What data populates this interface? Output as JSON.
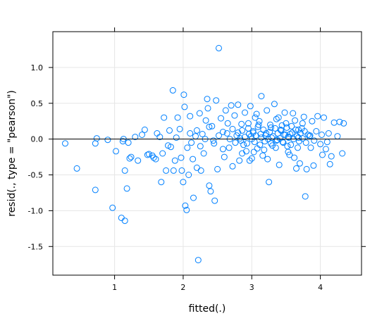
{
  "chart_data": {
    "type": "scatter",
    "title": "",
    "xlabel": "fitted(.)",
    "ylabel": "resid(., type = \"pearson\")",
    "xlim": [
      0.1,
      4.6
    ],
    "ylim": [
      -1.9,
      1.5
    ],
    "x_ticks": [
      1,
      2,
      3,
      4
    ],
    "y_ticks": [
      -1.5,
      -1.0,
      -0.5,
      0.0,
      0.5,
      1.0
    ],
    "x_tick_labels": [
      "1",
      "2",
      "3",
      "4"
    ],
    "y_tick_labels": [
      "-1.5",
      "-1.0",
      "-0.5",
      "0.0",
      "0.5",
      "1.0"
    ],
    "reference_line_y": 0,
    "grid": true,
    "marker": "open-circle",
    "color": "#0080ff",
    "series": [
      {
        "points": [
          [
            0.28,
            -0.06
          ],
          [
            0.45,
            -0.41
          ],
          [
            0.72,
            -0.06
          ],
          [
            0.74,
            0.01
          ],
          [
            0.72,
            -0.71
          ],
          [
            0.9,
            -0.01
          ],
          [
            0.97,
            -0.96
          ],
          [
            1.02,
            -0.17
          ],
          [
            1.1,
            -1.1
          ],
          [
            1.12,
            -0.03
          ],
          [
            1.13,
            0.0
          ],
          [
            1.15,
            -1.14
          ],
          [
            1.15,
            -0.44
          ],
          [
            1.18,
            -0.69
          ],
          [
            1.2,
            -0.05
          ],
          [
            1.22,
            -0.27
          ],
          [
            1.24,
            -0.25
          ],
          [
            1.3,
            0.03
          ],
          [
            1.34,
            -0.3
          ],
          [
            1.4,
            0.06
          ],
          [
            1.44,
            0.13
          ],
          [
            1.48,
            -0.22
          ],
          [
            1.5,
            -0.21
          ],
          [
            1.55,
            -0.23
          ],
          [
            1.57,
            -0.26
          ],
          [
            1.6,
            -0.28
          ],
          [
            1.62,
            0.08
          ],
          [
            1.66,
            0.03
          ],
          [
            1.68,
            -0.6
          ],
          [
            1.7,
            -0.2
          ],
          [
            1.72,
            0.3
          ],
          [
            1.75,
            -0.44
          ],
          [
            1.78,
            -0.09
          ],
          [
            1.8,
            0.12
          ],
          [
            1.82,
            -0.11
          ],
          [
            1.85,
            0.68
          ],
          [
            1.86,
            -0.44
          ],
          [
            1.88,
            -0.3
          ],
          [
            1.9,
            0.02
          ],
          [
            1.92,
            0.3
          ],
          [
            1.95,
            0.14
          ],
          [
            1.97,
            -0.26
          ],
          [
            1.98,
            -0.44
          ],
          [
            2.0,
            -0.6
          ],
          [
            2.01,
            0.62
          ],
          [
            2.02,
            0.45
          ],
          [
            2.03,
            -0.93
          ],
          [
            2.05,
            -0.99
          ],
          [
            2.06,
            -0.12
          ],
          [
            2.08,
            -0.5
          ],
          [
            2.1,
            0.32
          ],
          [
            2.12,
            -0.05
          ],
          [
            2.14,
            -0.28
          ],
          [
            2.15,
            -0.82
          ],
          [
            2.18,
            0.04
          ],
          [
            2.2,
            -0.4
          ],
          [
            2.22,
            -1.69
          ],
          [
            2.24,
            0.36
          ],
          [
            2.26,
            -0.44
          ],
          [
            2.28,
            0.07
          ],
          [
            2.3,
            -0.2
          ],
          [
            2.33,
            0.26
          ],
          [
            2.35,
            0.56
          ],
          [
            2.36,
            0.43
          ],
          [
            2.38,
            -0.65
          ],
          [
            2.4,
            -0.73
          ],
          [
            2.42,
            0.18
          ],
          [
            2.44,
            -0.02
          ],
          [
            2.46,
            -0.86
          ],
          [
            2.48,
            0.54
          ],
          [
            2.5,
            -0.42
          ],
          [
            2.52,
            1.27
          ],
          [
            2.55,
            0.29
          ],
          [
            2.58,
            0.1
          ],
          [
            2.6,
            -0.25
          ],
          [
            2.62,
            0.4
          ],
          [
            2.65,
            0.22
          ],
          [
            2.67,
            -0.12
          ],
          [
            2.7,
            0.47
          ],
          [
            2.72,
            -0.38
          ],
          [
            2.75,
            0.33
          ],
          [
            2.78,
            0.05
          ],
          [
            2.8,
            0.48
          ],
          [
            2.82,
            -0.3
          ],
          [
            2.85,
            0.21
          ],
          [
            2.88,
            -0.08
          ],
          [
            2.9,
            0.37
          ],
          [
            2.92,
            -0.17
          ],
          [
            2.95,
            0.15
          ],
          [
            2.98,
            0.46
          ],
          [
            3.0,
            -0.27
          ],
          [
            3.02,
            0.09
          ],
          [
            3.05,
            0.3
          ],
          [
            3.08,
            -0.13
          ],
          [
            3.1,
            0.2
          ],
          [
            3.14,
            0.6
          ],
          [
            3.16,
            -0.23
          ],
          [
            3.2,
            0.05
          ],
          [
            3.22,
            0.4
          ],
          [
            3.25,
            -0.6
          ],
          [
            3.28,
            0.16
          ],
          [
            3.3,
            -0.09
          ],
          [
            3.33,
            0.49
          ],
          [
            3.36,
            0.28
          ],
          [
            3.4,
            -0.36
          ],
          [
            3.42,
            0.13
          ],
          [
            3.45,
            -0.04
          ],
          [
            3.48,
            0.37
          ],
          [
            3.5,
            0.22
          ],
          [
            3.53,
            -0.18
          ],
          [
            3.56,
            0.07
          ],
          [
            3.6,
            0.36
          ],
          [
            3.62,
            -0.26
          ],
          [
            3.65,
            -0.41
          ],
          [
            3.68,
            0.13
          ],
          [
            3.7,
            -0.34
          ],
          [
            3.74,
            0.22
          ],
          [
            3.76,
            0.31
          ],
          [
            3.78,
            -0.8
          ],
          [
            3.8,
            -0.42
          ],
          [
            3.84,
            0.04
          ],
          [
            3.86,
            -0.12
          ],
          [
            3.88,
            0.25
          ],
          [
            3.9,
            -0.37
          ],
          [
            3.94,
            0.11
          ],
          [
            3.96,
            0.32
          ],
          [
            4.0,
            -0.07
          ],
          [
            4.03,
            -0.22
          ],
          [
            4.05,
            0.3
          ],
          [
            4.08,
            -0.14
          ],
          [
            4.12,
            0.08
          ],
          [
            4.14,
            -0.35
          ],
          [
            4.16,
            -0.24
          ],
          [
            4.2,
            0.23
          ],
          [
            4.25,
            0.04
          ],
          [
            4.28,
            0.24
          ],
          [
            4.32,
            -0.2
          ],
          [
            4.34,
            0.22
          ],
          [
            2.1,
            0.08
          ],
          [
            2.2,
            0.12
          ],
          [
            2.25,
            -0.1
          ],
          [
            2.32,
            0.0
          ],
          [
            2.38,
            0.17
          ],
          [
            2.45,
            -0.06
          ],
          [
            2.52,
            0.05
          ],
          [
            2.58,
            -0.14
          ],
          [
            2.64,
            0.08
          ],
          [
            2.68,
            0.0
          ],
          [
            2.72,
            0.14
          ],
          [
            2.76,
            -0.05
          ],
          [
            2.8,
            0.09
          ],
          [
            2.84,
            -0.02
          ],
          [
            2.86,
            0.12
          ],
          [
            2.9,
            0.03
          ],
          [
            2.93,
            -0.06
          ],
          [
            2.96,
            0.07
          ],
          [
            3.0,
            0.0
          ],
          [
            3.02,
            0.11
          ],
          [
            3.04,
            -0.04
          ],
          [
            3.06,
            0.05
          ],
          [
            3.09,
            0.17
          ],
          [
            3.12,
            -0.08
          ],
          [
            3.14,
            0.02
          ],
          [
            3.17,
            0.13
          ],
          [
            3.19,
            -0.03
          ],
          [
            3.21,
            0.08
          ],
          [
            3.24,
            0.0
          ],
          [
            3.26,
            0.1
          ],
          [
            3.28,
            -0.06
          ],
          [
            3.31,
            0.04
          ],
          [
            3.34,
            0.15
          ],
          [
            3.36,
            -0.02
          ],
          [
            3.38,
            0.08
          ],
          [
            3.41,
            0.01
          ],
          [
            3.43,
            0.12
          ],
          [
            3.46,
            -0.05
          ],
          [
            3.49,
            0.06
          ],
          [
            3.51,
            0.16
          ],
          [
            3.54,
            0.02
          ],
          [
            3.57,
            -0.08
          ],
          [
            3.59,
            0.09
          ],
          [
            3.61,
            0.0
          ],
          [
            3.64,
            0.13
          ],
          [
            3.66,
            0.04
          ],
          [
            3.69,
            -0.03
          ],
          [
            3.71,
            0.08
          ],
          [
            3.74,
            0.01
          ],
          [
            3.77,
            0.11
          ],
          [
            3.79,
            -0.05
          ],
          [
            3.82,
            0.06
          ],
          [
            2.86,
            -0.2
          ],
          [
            2.95,
            0.22
          ],
          [
            3.03,
            -0.18
          ],
          [
            3.11,
            0.25
          ],
          [
            3.18,
            -0.15
          ],
          [
            3.27,
            0.2
          ],
          [
            3.35,
            -0.12
          ],
          [
            3.44,
            0.19
          ],
          [
            3.52,
            -0.1
          ],
          [
            3.58,
            0.18
          ],
          [
            3.67,
            -0.12
          ],
          [
            3.73,
            0.15
          ],
          [
            2.97,
            -0.3
          ],
          [
            3.07,
            0.35
          ],
          [
            3.23,
            -0.28
          ],
          [
            3.39,
            0.3
          ],
          [
            3.55,
            -0.22
          ],
          [
            3.63,
            0.26
          ],
          [
            3.47,
            0.06
          ],
          [
            3.29,
            0.02
          ],
          [
            3.13,
            0.07
          ],
          [
            2.99,
            0.04
          ],
          [
            2.83,
            0.01
          ],
          [
            3.37,
            -0.01
          ],
          [
            3.53,
            0.03
          ],
          [
            3.68,
            0.02
          ],
          [
            3.85,
            0.05
          ],
          [
            3.91,
            -0.02
          ],
          [
            4.02,
            0.06
          ],
          [
            4.1,
            -0.04
          ]
        ]
      }
    ]
  }
}
